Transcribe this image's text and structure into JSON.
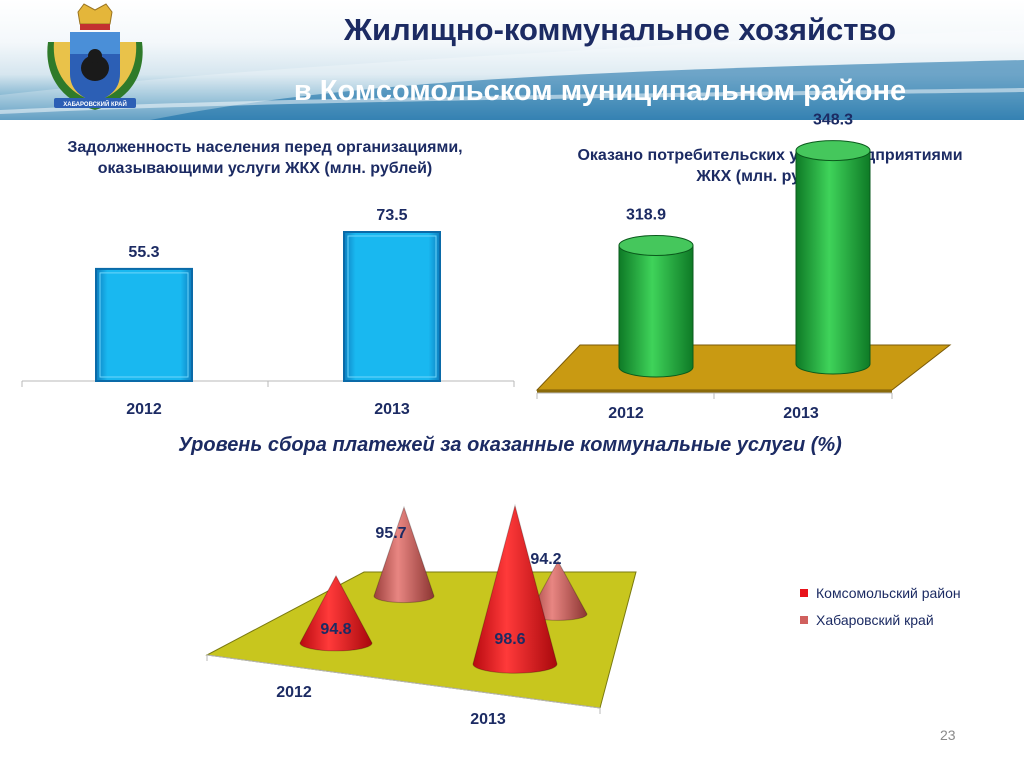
{
  "header": {
    "title_line1": "Жилищно-коммунальное хозяйство",
    "title_line2": "в Комсомольском муниципальном районе",
    "emblem_label": "ХАБАРОВСКИЙ КРАЙ"
  },
  "page_number": "23",
  "colors": {
    "bar_blue": "#19b8f0",
    "cyl_green": "#1fae3e",
    "floor_gold": "#c99a12",
    "floor_olive": "#c8c61e",
    "cone_red": "#e8121a",
    "cone_salmon": "#d0605e"
  },
  "chart_data": [
    {
      "type": "bar",
      "title": "Задолженность населения перед организациями, оказывающими услуги ЖКХ (млн. рублей)",
      "categories": [
        "2012",
        "2013"
      ],
      "values": [
        55.3,
        73.5
      ],
      "ylim": [
        0,
        80
      ]
    },
    {
      "type": "bar",
      "title": "Оказано потребительских услуг предприятиями ЖКХ (млн. рублей)",
      "categories": [
        "2012",
        "2013"
      ],
      "values": [
        318.9,
        348.3
      ],
      "ylim": [
        280,
        360
      ]
    },
    {
      "type": "bar",
      "title": "Уровень сбора платежей за оказанные коммунальные услуги (%)",
      "categories": [
        "2012",
        "2013"
      ],
      "series": [
        {
          "name": "Комсомольский район",
          "values": [
            94.8,
            98.6
          ]
        },
        {
          "name": "Хабаровский край",
          "values": [
            95.7,
            94.2
          ]
        }
      ],
      "legend": "right"
    }
  ]
}
